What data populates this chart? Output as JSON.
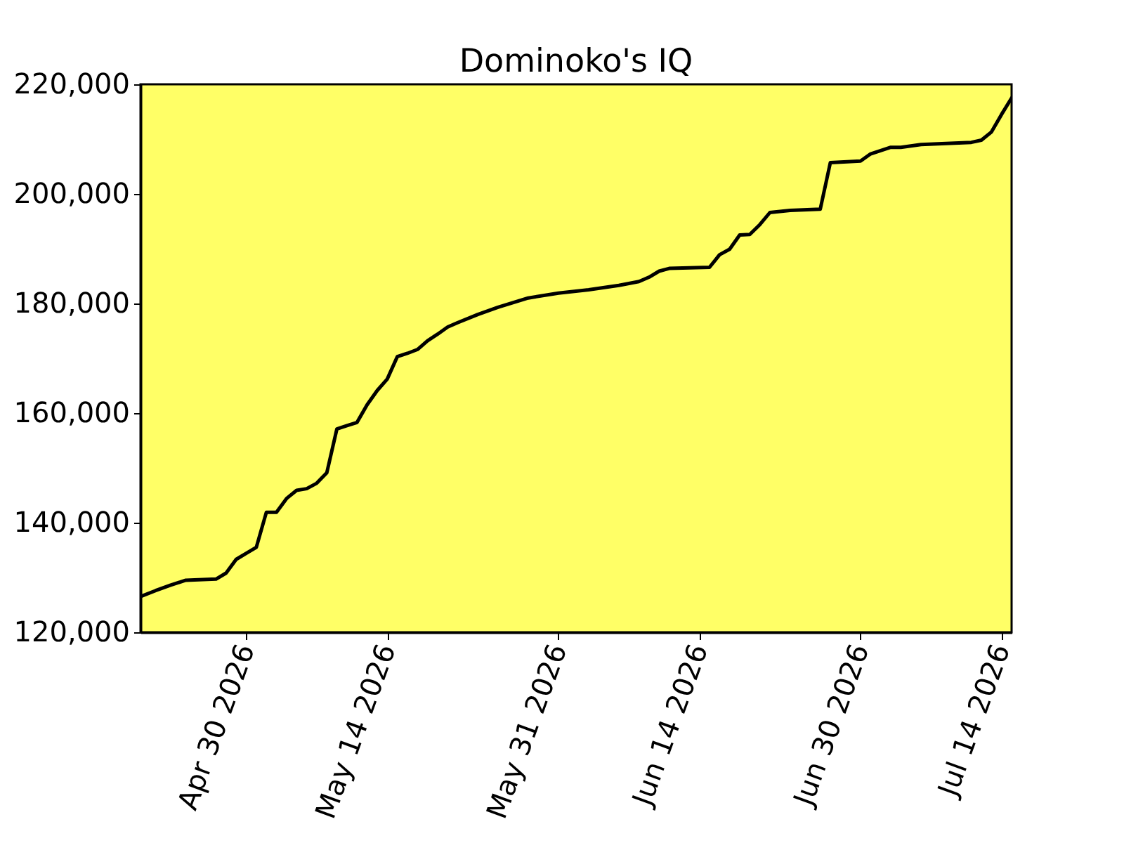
{
  "chart_data": {
    "type": "line",
    "title": "Dominoko's IQ",
    "x": [
      "2026-04-19T12:00",
      "2026-04-21",
      "2026-04-22T12:00",
      "2026-04-24",
      "2026-04-27",
      "2026-04-28",
      "2026-04-29",
      "2026-04-30",
      "2026-05-01",
      "2026-05-02",
      "2026-05-03",
      "2026-05-04",
      "2026-05-05",
      "2026-05-06",
      "2026-05-07",
      "2026-05-08",
      "2026-05-09",
      "2026-05-10",
      "2026-05-11",
      "2026-05-12",
      "2026-05-13",
      "2026-05-14",
      "2026-05-15",
      "2026-05-16",
      "2026-05-17",
      "2026-05-18",
      "2026-05-19",
      "2026-05-20",
      "2026-05-21",
      "2026-05-23",
      "2026-05-25",
      "2026-05-28",
      "2026-05-31",
      "2026-06-03",
      "2026-06-06",
      "2026-06-08",
      "2026-06-09",
      "2026-06-10",
      "2026-06-11",
      "2026-06-15",
      "2026-06-16",
      "2026-06-17",
      "2026-06-18",
      "2026-06-19",
      "2026-06-20",
      "2026-06-21",
      "2026-06-23",
      "2026-06-26",
      "2026-06-27",
      "2026-06-30",
      "2026-07-01",
      "2026-07-03",
      "2026-07-04",
      "2026-07-06",
      "2026-07-11",
      "2026-07-12",
      "2026-07-13",
      "2026-07-14",
      "2026-07-15"
    ],
    "series": [
      {
        "color": "#000000",
        "values": [
          126500,
          127600,
          128600,
          129500,
          129700,
          130800,
          133300,
          134400,
          135500,
          141900,
          141900,
          144400,
          145900,
          146200,
          147200,
          149100,
          157100,
          157700,
          158300,
          161500,
          164100,
          166200,
          170300,
          170900,
          171600,
          173200,
          174400,
          175700,
          176500,
          178000,
          179300,
          181000,
          181900,
          182500,
          183300,
          184000,
          184800,
          185900,
          186400,
          186600,
          188900,
          189900,
          192500,
          192600,
          194400,
          196600,
          197000,
          197200,
          205700,
          206000,
          207300,
          208500,
          208500,
          209000,
          209400,
          209800,
          211300,
          214500,
          217500
        ]
      }
    ],
    "xlim": [
      "2026-04-19T12:00",
      "2026-07-15"
    ],
    "xticks": [
      {
        "value": "2026-04-30",
        "label": "Apr 30 2026"
      },
      {
        "value": "2026-05-14",
        "label": "May 14 2026"
      },
      {
        "value": "2026-05-31",
        "label": "May 31 2026"
      },
      {
        "value": "2026-06-14",
        "label": "Jun 14 2026"
      },
      {
        "value": "2026-06-30",
        "label": "Jun 30 2026"
      },
      {
        "value": "2026-07-14",
        "label": "Jul 14 2026"
      }
    ],
    "ylim": [
      120000,
      220000
    ],
    "yticks": [
      {
        "value": 120000,
        "label": "120,000"
      },
      {
        "value": 140000,
        "label": "140,000"
      },
      {
        "value": 160000,
        "label": "160,000"
      },
      {
        "value": 180000,
        "label": "180,000"
      },
      {
        "value": 200000,
        "label": "200,000"
      },
      {
        "value": 220000,
        "label": "220,000"
      }
    ],
    "line_style": "solid"
  }
}
